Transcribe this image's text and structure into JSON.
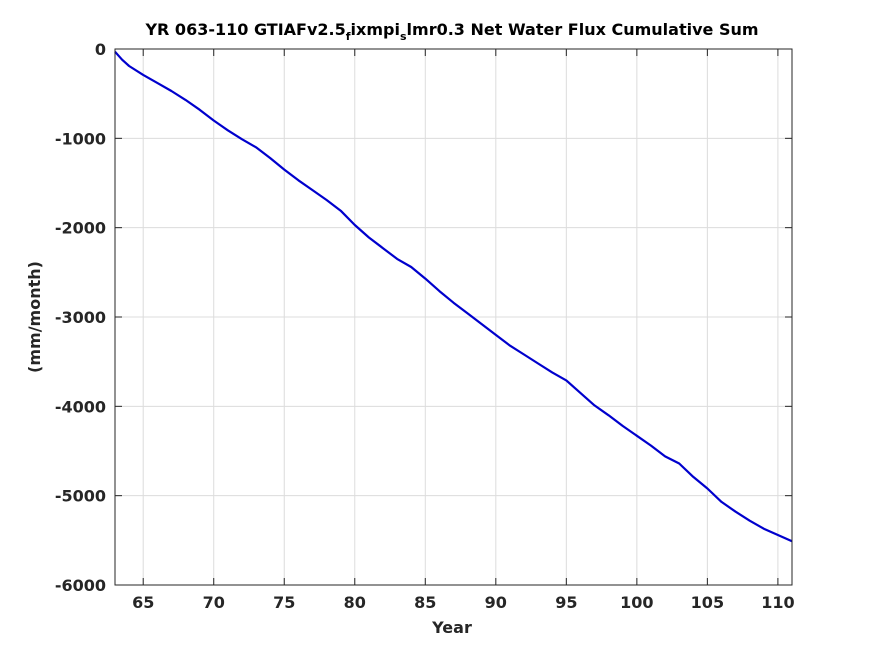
{
  "chart_data": {
    "type": "line",
    "title_parts": [
      {
        "text": "YR 063-110 GTIAFv2.5",
        "sub": false
      },
      {
        "text": "f",
        "sub": true
      },
      {
        "text": "ixmpi",
        "sub": false
      },
      {
        "text": "s",
        "sub": true
      },
      {
        "text": "lmr0.3 Net Water Flux Cumulative Sum",
        "sub": false
      }
    ],
    "xlabel": "Year",
    "ylabel": "(mm/month)",
    "xlim": [
      63,
      111
    ],
    "ylim": [
      -6000,
      0
    ],
    "xticks": [
      65,
      70,
      75,
      80,
      85,
      90,
      95,
      100,
      105,
      110
    ],
    "yticks": [
      0,
      -1000,
      -2000,
      -3000,
      -4000,
      -5000,
      -6000
    ],
    "grid": true,
    "legend": "none",
    "series": [
      {
        "color": "#0000cd",
        "x": [
          63.0,
          63.5,
          64,
          65,
          66,
          67,
          68,
          69,
          70,
          71,
          72,
          73,
          74,
          75,
          76,
          77,
          78,
          79,
          80,
          81,
          82,
          83,
          84,
          85,
          86,
          87,
          88,
          89,
          90,
          91,
          92,
          93,
          94,
          95,
          96,
          97,
          98,
          99,
          100,
          101,
          102,
          103,
          104,
          105,
          106,
          107,
          108,
          109,
          110,
          111
        ],
        "y": [
          -30,
          -120,
          -190,
          -290,
          -380,
          -470,
          -570,
          -680,
          -800,
          -910,
          -1010,
          -1100,
          -1220,
          -1350,
          -1470,
          -1580,
          -1690,
          -1810,
          -1970,
          -2110,
          -2230,
          -2350,
          -2440,
          -2570,
          -2710,
          -2840,
          -2960,
          -3080,
          -3200,
          -3320,
          -3420,
          -3520,
          -3620,
          -3710,
          -3850,
          -3990,
          -4100,
          -4220,
          -4330,
          -4440,
          -4560,
          -4640,
          -4790,
          -4920,
          -5070,
          -5180,
          -5280,
          -5370,
          -5440,
          -5510
        ]
      }
    ]
  }
}
